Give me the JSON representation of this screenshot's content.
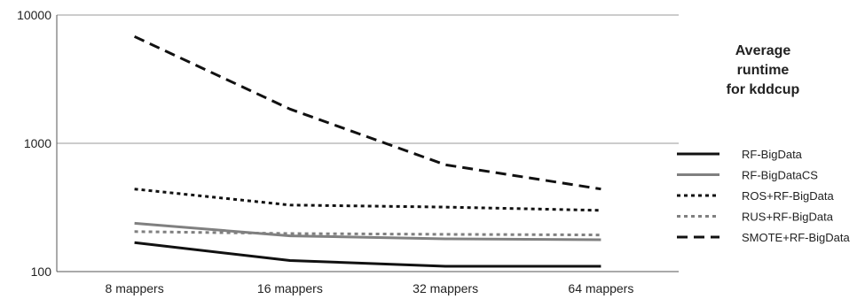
{
  "chart_data": {
    "type": "line",
    "title_lines": [
      "Average",
      "runtime",
      "for kddcup"
    ],
    "categories": [
      "8 mappers",
      "16 mappers",
      "32 mappers",
      "64 mappers"
    ],
    "y_scale": "log",
    "ylim": [
      100,
      10000
    ],
    "y_ticks": [
      100,
      1000,
      10000
    ],
    "grid": "horizontal",
    "legend_position": "right",
    "series": [
      {
        "name": "RF-BigData",
        "values": [
          168,
          122,
          110,
          110
        ],
        "color": "#111111",
        "style": "solid"
      },
      {
        "name": "RF-BigDataCS",
        "values": [
          238,
          190,
          180,
          177
        ],
        "color": "#808080",
        "style": "solid"
      },
      {
        "name": "ROS+RF-BigData",
        "values": [
          440,
          330,
          318,
          300
        ],
        "color": "#111111",
        "style": "dotted"
      },
      {
        "name": "RUS+RF-BigData",
        "values": [
          205,
          198,
          195,
          193
        ],
        "color": "#808080",
        "style": "dotted"
      },
      {
        "name": "SMOTE+RF-BigData",
        "values": [
          6800,
          1850,
          680,
          440
        ],
        "color": "#111111",
        "style": "dashed"
      }
    ]
  }
}
